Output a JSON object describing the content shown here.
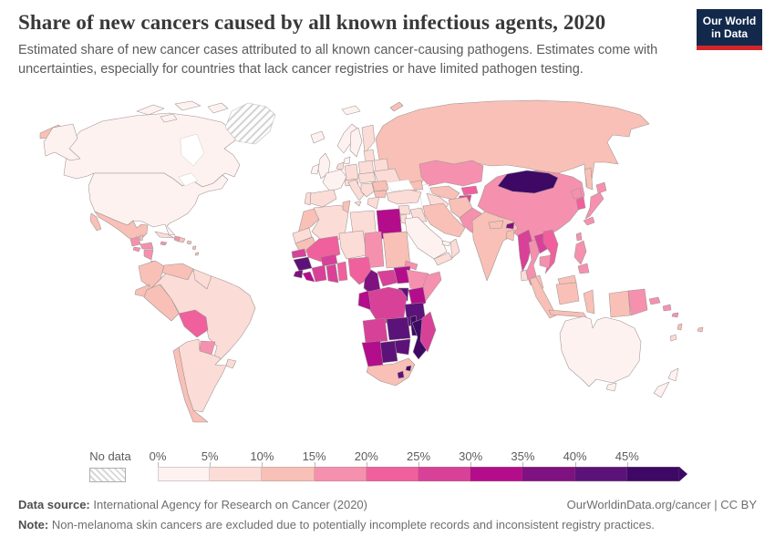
{
  "header": {
    "title": "Share of new cancers caused by all known infectious agents, 2020",
    "subtitle": "Estimated share of new cancer cases attributed to all known cancer-causing pathogens. Estimates come with uncertainties, especially for countries that lack cancer registries or have limited pathogen testing.",
    "logo": {
      "line1": "Our World",
      "line2": "in Data",
      "bg_color": "#12294b",
      "accent_color": "#d2262b"
    }
  },
  "footer": {
    "datasource_label": "Data source:",
    "datasource_text": " International Agency for Research on Cancer (2020)",
    "credit": "OurWorldinData.org/cancer | CC BY",
    "note_label": "Note:",
    "note_text": " Non-melanoma skin cancers are excluded due to potentially incomplete records and inconsistent registry practices."
  },
  "chart_data": {
    "type": "choropleth",
    "title": "Share of new cancers caused by all known infectious agents",
    "year": "2020",
    "unit": "%",
    "projection": "world",
    "legend": {
      "no_data_label": "No data",
      "tick_labels": [
        "0%",
        "5%",
        "10%",
        "15%",
        "20%",
        "25%",
        "30%",
        "35%",
        "40%",
        "45%"
      ],
      "open_ended_arrow": true,
      "bins": [
        {
          "label": "0-5%",
          "max": 5,
          "color": "#fdf2f0"
        },
        {
          "label": "5-10%",
          "max": 10,
          "color": "#fbdcd6"
        },
        {
          "label": "10-15%",
          "max": 15,
          "color": "#f8c0b6"
        },
        {
          "label": "15-20%",
          "max": 20,
          "color": "#f591ae"
        },
        {
          "label": "20-25%",
          "max": 25,
          "color": "#f0609d"
        },
        {
          "label": "25-30%",
          "max": 30,
          "color": "#d84198"
        },
        {
          "label": "30-35%",
          "max": 35,
          "color": "#b30d8c"
        },
        {
          "label": "35-40%",
          "max": 40,
          "color": "#7e1281"
        },
        {
          "label": "40-45%",
          "max": 45,
          "color": "#5c1379"
        },
        {
          "label": "45%+",
          "max": 100,
          "color": "#3d0965"
        }
      ]
    },
    "regions": {
      "united-states": {
        "name": "United States",
        "value": 4
      },
      "canada": {
        "name": "Canada",
        "value": 4
      },
      "greenland": {
        "name": "Greenland",
        "value": null
      },
      "mexico": {
        "name": "Mexico",
        "value": 12
      },
      "guatemala": {
        "name": "Guatemala",
        "value": 17
      },
      "belize": {
        "name": "Belize",
        "value": 14
      },
      "honduras": {
        "name": "Honduras",
        "value": 17
      },
      "el-salvador": {
        "name": "El Salvador",
        "value": 19
      },
      "nicaragua": {
        "name": "Nicaragua",
        "value": 15
      },
      "costa-rica": {
        "name": "Costa Rica",
        "value": 12
      },
      "panama": {
        "name": "Panama",
        "value": 13
      },
      "cuba": {
        "name": "Cuba",
        "value": 9
      },
      "jamaica": {
        "name": "Jamaica",
        "value": 15
      },
      "haiti": {
        "name": "Haiti",
        "value": 17
      },
      "dominican-republic": {
        "name": "Dominican Republic",
        "value": 14
      },
      "puerto-rico": {
        "name": "Puerto Rico",
        "value": 11
      },
      "lesser-antilles": {
        "name": "Lesser Antilles",
        "value": 12
      },
      "colombia": {
        "name": "Colombia",
        "value": 12
      },
      "venezuela": {
        "name": "Venezuela",
        "value": 11
      },
      "guyana": {
        "name": "Guyanas",
        "value": 9
      },
      "ecuador": {
        "name": "Ecuador",
        "value": 13
      },
      "peru": {
        "name": "Peru",
        "value": 13
      },
      "bolivia": {
        "name": "Bolivia",
        "value": 21
      },
      "brazil": {
        "name": "Brazil",
        "value": 7
      },
      "paraguay": {
        "name": "Paraguay",
        "value": 16
      },
      "uruguay": {
        "name": "Uruguay",
        "value": 7
      },
      "chile": {
        "name": "Chile",
        "value": 10
      },
      "argentina": {
        "name": "Argentina",
        "value": 6
      },
      "iceland": {
        "name": "Iceland",
        "value": 4
      },
      "united-kingdom": {
        "name": "United Kingdom",
        "value": 3
      },
      "ireland": {
        "name": "Ireland",
        "value": 4
      },
      "norway": {
        "name": "Norway",
        "value": 3
      },
      "sweden": {
        "name": "Sweden",
        "value": 3
      },
      "finland": {
        "name": "Finland",
        "value": 6
      },
      "denmark": {
        "name": "Denmark",
        "value": 4
      },
      "germany": {
        "name": "Germany",
        "value": 6
      },
      "netherlands-belgium": {
        "name": "Netherlands / Belgium",
        "value": 5
      },
      "france": {
        "name": "France",
        "value": 4
      },
      "spain": {
        "name": "Spain",
        "value": 6
      },
      "portugal": {
        "name": "Portugal",
        "value": 7
      },
      "italy": {
        "name": "Italy",
        "value": 8
      },
      "switzerland-austria": {
        "name": "Switzerland / Austria",
        "value": 6
      },
      "poland": {
        "name": "Poland",
        "value": 9
      },
      "czechia-hungary": {
        "name": "Czechia / Hungary",
        "value": 8
      },
      "baltics": {
        "name": "Baltic states",
        "value": 9
      },
      "belarus": {
        "name": "Belarus",
        "value": 9
      },
      "ukraine": {
        "name": "Ukraine",
        "value": 9
      },
      "romania": {
        "name": "Romania",
        "value": 11
      },
      "balkans": {
        "name": "Balkans",
        "value": 8
      },
      "bulgaria": {
        "name": "Bulgaria",
        "value": 10
      },
      "greece": {
        "name": "Greece",
        "value": 7
      },
      "russia": {
        "name": "Russia",
        "value": 11
      },
      "caucasus": {
        "name": "Caucasus",
        "value": 10
      },
      "turkey": {
        "name": "Turkey",
        "value": 7
      },
      "kazakhstan": {
        "name": "Kazakhstan",
        "value": 17
      },
      "uzbekistan": {
        "name": "Uzbekistan",
        "value": 13
      },
      "turkmenistan": {
        "name": "Turkmenistan",
        "value": 9
      },
      "kyrgyzstan": {
        "name": "Kyrgyzstan",
        "value": 22
      },
      "tajikistan": {
        "name": "Tajikistan",
        "value": 26
      },
      "syria": {
        "name": "Syria",
        "value": 7
      },
      "iraq": {
        "name": "Iraq",
        "value": 8
      },
      "jordan-israel": {
        "name": "Jordan / Israel",
        "value": 5
      },
      "saudi-arabia": {
        "name": "Saudi Arabia",
        "value": 2
      },
      "yemen": {
        "name": "Yemen",
        "value": 8
      },
      "oman": {
        "name": "Oman",
        "value": 6
      },
      "uae": {
        "name": "United Arab Emirates",
        "value": 3
      },
      "iran": {
        "name": "Iran",
        "value": 11
      },
      "afghanistan": {
        "name": "Afghanistan",
        "value": 11
      },
      "pakistan": {
        "name": "Pakistan",
        "value": 16
      },
      "morocco": {
        "name": "Morocco",
        "value": 11
      },
      "western-sahara": {
        "name": "Western Sahara",
        "value": 8
      },
      "algeria": {
        "name": "Algeria",
        "value": 8
      },
      "tunisia": {
        "name": "Tunisia",
        "value": 10
      },
      "libya": {
        "name": "Libya",
        "value": 7
      },
      "egypt": {
        "name": "Egypt",
        "value": 31
      },
      "mauritania": {
        "name": "Mauritania",
        "value": 11
      },
      "mali": {
        "name": "Mali",
        "value": 23
      },
      "senegal": {
        "name": "Senegal",
        "value": 26
      },
      "guinea": {
        "name": "Guinea",
        "value": 41
      },
      "sierra-leone": {
        "name": "Sierra Leone",
        "value": 36
      },
      "liberia": {
        "name": "Liberia",
        "value": 31
      },
      "ivory-coast": {
        "name": "Cote d'Ivoire",
        "value": 26
      },
      "ghana": {
        "name": "Ghana",
        "value": 25
      },
      "togo-benin": {
        "name": "Togo / Benin",
        "value": 23
      },
      "burkina-faso": {
        "name": "Burkina Faso",
        "value": 26
      },
      "niger": {
        "name": "Niger",
        "value": 8
      },
      "chad": {
        "name": "Chad",
        "value": 17
      },
      "sudan": {
        "name": "Sudan",
        "value": 12
      },
      "eritrea": {
        "name": "Eritrea / Djibouti",
        "value": 16
      },
      "nigeria": {
        "name": "Nigeria",
        "value": 22
      },
      "cameroon": {
        "name": "Cameroon",
        "value": 37
      },
      "central-african-republic": {
        "name": "Central African Republic",
        "value": 28
      },
      "south-sudan": {
        "name": "South Sudan",
        "value": 31
      },
      "ethiopia": {
        "name": "Ethiopia",
        "value": 19
      },
      "somalia": {
        "name": "Somalia",
        "value": 19
      },
      "kenya": {
        "name": "Kenya",
        "value": 33
      },
      "uganda": {
        "name": "Uganda",
        "value": 42
      },
      "rwanda-burundi": {
        "name": "Rwanda / Burundi",
        "value": 35
      },
      "dr-congo": {
        "name": "Democratic Republic of Congo",
        "value": 28
      },
      "congo-gabon": {
        "name": "Congo / Gabon",
        "value": 31
      },
      "tanzania": {
        "name": "Tanzania",
        "value": 44
      },
      "angola": {
        "name": "Angola",
        "value": 27
      },
      "zambia": {
        "name": "Zambia",
        "value": 42
      },
      "malawi": {
        "name": "Malawi",
        "value": 45
      },
      "mozambique": {
        "name": "Mozambique",
        "value": 46
      },
      "zimbabwe": {
        "name": "Zimbabwe",
        "value": 43
      },
      "botswana": {
        "name": "Botswana",
        "value": 44
      },
      "namibia": {
        "name": "Namibia",
        "value": 31
      },
      "south-africa": {
        "name": "South Africa",
        "value": 12
      },
      "lesotho": {
        "name": "Lesotho",
        "value": 41
      },
      "eswatini": {
        "name": "Eswatini",
        "value": 46
      },
      "madagascar": {
        "name": "Madagascar",
        "value": 28
      },
      "india": {
        "name": "India",
        "value": 11
      },
      "nepal": {
        "name": "Nepal",
        "value": 10
      },
      "bhutan": {
        "name": "Bhutan",
        "value": 36
      },
      "bangladesh": {
        "name": "Bangladesh",
        "value": 10
      },
      "sri-lanka": {
        "name": "Sri Lanka",
        "value": 8
      },
      "china": {
        "name": "China",
        "value": 16
      },
      "mongolia": {
        "name": "Mongolia",
        "value": 48
      },
      "north-korea": {
        "name": "North Korea",
        "value": 18
      },
      "south-korea": {
        "name": "South Korea",
        "value": 20
      },
      "japan": {
        "name": "Japan",
        "value": 16
      },
      "taiwan": {
        "name": "Taiwan",
        "value": 16
      },
      "myanmar": {
        "name": "Myanmar",
        "value": 27
      },
      "thailand": {
        "name": "Thailand",
        "value": 17
      },
      "laos": {
        "name": "Laos",
        "value": 25
      },
      "vietnam": {
        "name": "Vietnam",
        "value": 21
      },
      "cambodia": {
        "name": "Cambodia",
        "value": 18
      },
      "malaysia": {
        "name": "Malaysia",
        "value": 12
      },
      "indonesia": {
        "name": "Indonesia",
        "value": 13
      },
      "philippines": {
        "name": "Philippines",
        "value": 15
      },
      "papua-new-guinea": {
        "name": "Papua New Guinea",
        "value": 16
      },
      "solomon-islands": {
        "name": "Solomon Islands",
        "value": 15
      },
      "vanuatu": {
        "name": "Vanuatu",
        "value": 14
      },
      "fiji": {
        "name": "Fiji",
        "value": 12
      },
      "new-caledonia": {
        "name": "New Caledonia",
        "value": 9
      },
      "australia": {
        "name": "Australia",
        "value": 3
      },
      "new-zealand": {
        "name": "New Zealand",
        "value": 3
      }
    }
  }
}
